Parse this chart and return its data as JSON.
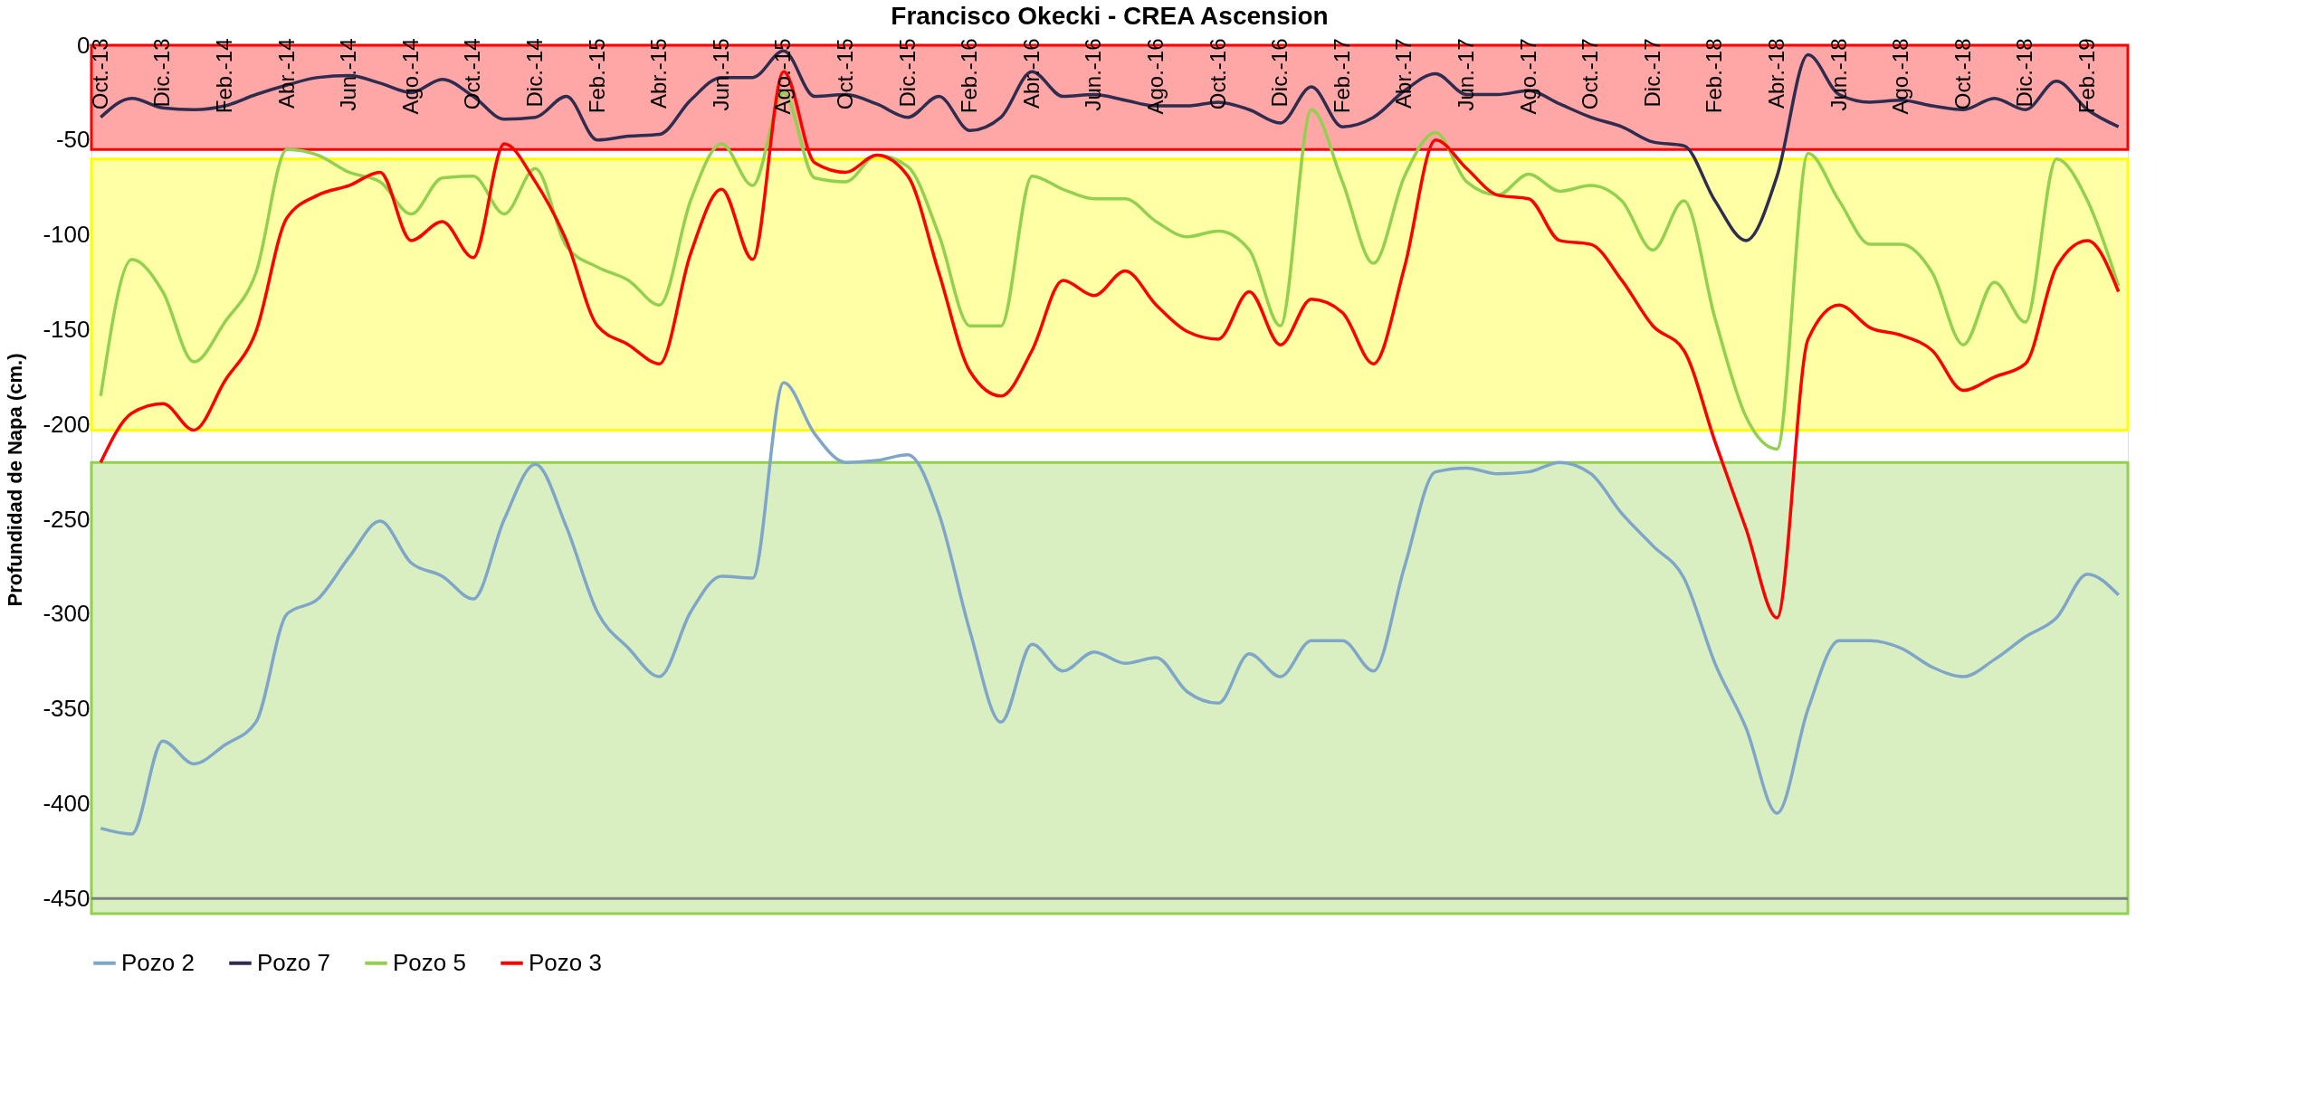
{
  "chart_data": {
    "type": "line",
    "title": "Francisco Okecki - CREA Ascension",
    "ylabel": "Profundidad de Napa (cm.)",
    "categories": [
      "Oct.-13",
      null,
      "Dic.-13",
      null,
      "Feb.-14",
      null,
      "Abr.-14",
      null,
      "Jun.-14",
      null,
      "Ago.-14",
      null,
      "Oct.-14",
      null,
      "Dic.-14",
      null,
      "Feb.-15",
      null,
      "Abr.-15",
      null,
      "Jun.-15",
      null,
      "Ago.-15",
      null,
      "Oct.-15",
      null,
      "Dic.-15",
      null,
      "Feb.-16",
      null,
      "Abr.-16",
      null,
      "Jun.-16",
      null,
      "Ago.-16",
      null,
      "Oct.-16",
      null,
      "Dic.-16",
      null,
      "Feb.-17",
      null,
      "Abr.-17",
      null,
      "Jun.-17",
      null,
      "Ago.-17",
      null,
      "Oct.-17",
      null,
      "Dic.-17",
      null,
      "Feb.-18",
      null,
      "Abr.-18",
      null,
      "Jun.-18",
      null,
      "Ago.-18",
      null,
      "Oct.-18",
      null,
      "Dic.-18",
      null,
      "Feb.-19",
      null
    ],
    "series": [
      {
        "name": "Pozo 2",
        "color": "#7fa6c9",
        "values": [
          -413,
          -416,
          -367,
          -379,
          -369,
          -357,
          -300,
          -292,
          -270,
          -251,
          -273,
          -280,
          -292,
          -250,
          -221,
          -254,
          -299,
          -318,
          -333,
          -299,
          -280,
          -281,
          -178,
          -205,
          -220,
          -219,
          -216,
          -247,
          -309,
          -357,
          -316,
          -330,
          -320,
          -326,
          -323,
          -341,
          -347,
          -321,
          -333,
          -314,
          -314,
          -330,
          -275,
          -225,
          -223,
          -226,
          -225,
          -220,
          -226,
          -247,
          -264,
          -281,
          -326,
          -360,
          -405,
          -350,
          -314,
          -314,
          -318,
          -328,
          -333,
          -324,
          -312,
          -302,
          -279,
          -290
        ]
      },
      {
        "name": "Pozo 7",
        "color": "#2e2c4f",
        "values": [
          -38,
          -28,
          -33,
          -34,
          -32,
          -26,
          -21,
          -17,
          -16,
          -20,
          -25,
          -18,
          -27,
          -39,
          -38,
          -27,
          -50,
          -48,
          -47,
          -29,
          -17,
          -17,
          -3,
          -27,
          -26,
          -31,
          -38,
          -27,
          -45,
          -38,
          -14,
          -27,
          -26,
          -29,
          -32,
          -32,
          -30,
          -34,
          -41,
          -22,
          -43,
          -38,
          -24,
          -15,
          -26,
          -26,
          -24,
          -31,
          -38,
          -43,
          -51,
          -53,
          -82,
          -103,
          -69,
          -5,
          -26,
          -30,
          -29,
          -32,
          -34,
          -28,
          -34,
          -19,
          -34,
          -43
        ]
      },
      {
        "name": "Pozo 5",
        "color": "#92d050",
        "values": [
          -185,
          -113,
          -130,
          -167,
          -146,
          -120,
          -55,
          -58,
          -67,
          -72,
          -89,
          -70,
          -69,
          -89,
          -65,
          -106,
          -117,
          -124,
          -137,
          -82,
          -52,
          -74,
          -25,
          -70,
          -72,
          -58,
          -64,
          -100,
          -148,
          -148,
          -69,
          -76,
          -81,
          -81,
          -93,
          -101,
          -98,
          -108,
          -148,
          -34,
          -72,
          -115,
          -69,
          -46,
          -72,
          -79,
          -68,
          -77,
          -74,
          -82,
          -108,
          -82,
          -144,
          -196,
          -213,
          -57,
          -82,
          -105,
          -105,
          -120,
          -158,
          -125,
          -146,
          -60,
          -82,
          -127
        ]
      },
      {
        "name": "Pozo 3",
        "color": "#ff0000",
        "values": [
          -220,
          -194,
          -189,
          -203,
          -177,
          -151,
          -91,
          -79,
          -74,
          -67,
          -103,
          -93,
          -112,
          -52,
          -72,
          -103,
          -148,
          -158,
          -168,
          -110,
          -76,
          -113,
          -14,
          -62,
          -67,
          -58,
          -69,
          -120,
          -172,
          -185,
          -161,
          -124,
          -132,
          -119,
          -137,
          -151,
          -155,
          -130,
          -158,
          -134,
          -141,
          -168,
          -117,
          -50,
          -65,
          -79,
          -81,
          -103,
          -105,
          -124,
          -148,
          -161,
          -209,
          -255,
          -302,
          -155,
          -137,
          -149,
          -153,
          -161,
          -182,
          -175,
          -168,
          -117,
          -103,
          -130
        ]
      }
    ],
    "ylim": [
      -458,
      0
    ],
    "yticks": [
      0,
      -50,
      -100,
      -150,
      -200,
      -250,
      -300,
      -350,
      -400,
      -450
    ],
    "bands": [
      {
        "axis": "y",
        "from": -55,
        "to": 0,
        "color": "#ff0000"
      },
      {
        "axis": "y",
        "from": -203,
        "to": -60,
        "color": "#ffff00"
      },
      {
        "axis": "y",
        "from": -458,
        "to": -220,
        "color": "#92d050"
      }
    ],
    "ref_lines": [
      {
        "axis": "y",
        "value": -450,
        "color": "#7f7f7f"
      }
    ],
    "grid": false,
    "legend": "bottom",
    "marker": "none",
    "line_style": "solid"
  }
}
